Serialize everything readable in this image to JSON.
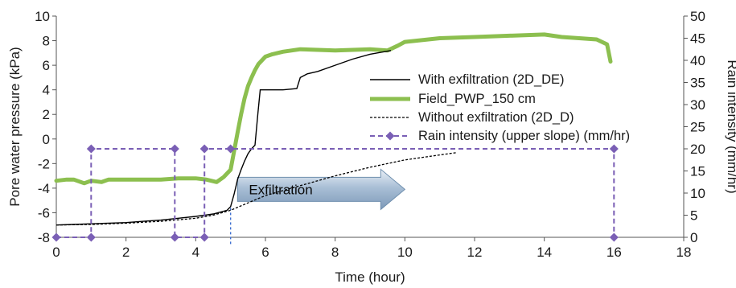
{
  "chart_data": {
    "type": "line",
    "xlabel": "Time (hour)",
    "ylabel": "Pore water pressure (kPa)",
    "y2label": "Rain intensity (mm/hr)",
    "xlim": [
      0,
      18
    ],
    "ylim": [
      -8,
      10
    ],
    "y2lim": [
      0,
      50
    ],
    "x_ticks": [
      0,
      2,
      4,
      6,
      8,
      10,
      12,
      14,
      16,
      18
    ],
    "y_ticks": [
      -8,
      -6,
      -4,
      -2,
      0,
      2,
      4,
      6,
      8,
      10
    ],
    "y2_ticks": [
      0,
      5,
      10,
      15,
      20,
      25,
      30,
      35,
      40,
      45,
      50
    ],
    "grid": false,
    "legend_position": "center-right",
    "colors": {
      "with_exfiltration": "#000000",
      "field": "#8cbf4f",
      "without_exfiltration": "#000000",
      "rain": "#7a5fb5",
      "arrow": "#8aa6c4"
    },
    "series": [
      {
        "name": "With exfiltration (2D_DE)",
        "axis": "left",
        "style": "solid",
        "x": [
          0,
          0.5,
          1,
          1.5,
          2,
          2.5,
          3,
          3.5,
          4,
          4.5,
          4.9,
          5.0,
          5.1,
          5.2,
          5.3,
          5.4,
          5.5,
          5.6,
          5.7,
          5.78,
          5.85,
          6.0,
          6.5,
          6.9,
          7.0,
          7.2,
          7.5,
          8.0,
          8.5,
          9.0,
          9.6
        ],
        "y": [
          -7.0,
          -6.95,
          -6.9,
          -6.85,
          -6.8,
          -6.7,
          -6.6,
          -6.45,
          -6.3,
          -6.1,
          -5.8,
          -5.5,
          -4.5,
          -3.3,
          -2.5,
          -1.8,
          -1.2,
          -0.8,
          -0.5,
          2.0,
          4.0,
          4.0,
          4.0,
          4.1,
          5.0,
          5.3,
          5.5,
          6.0,
          6.5,
          6.9,
          7.2
        ]
      },
      {
        "name": "Field_PWP_150 cm",
        "axis": "left",
        "style": "solid",
        "x": [
          0,
          0.3,
          0.5,
          0.8,
          1.0,
          1.3,
          1.5,
          2.0,
          2.5,
          3.0,
          3.5,
          4.0,
          4.3,
          4.6,
          4.8,
          5.0,
          5.1,
          5.2,
          5.3,
          5.4,
          5.5,
          5.6,
          5.7,
          5.8,
          6.0,
          6.2,
          6.5,
          7.0,
          8.0,
          9.0,
          9.5,
          9.8,
          10.0,
          11.0,
          12.0,
          13.0,
          14.0,
          14.5,
          15.0,
          15.5,
          15.8,
          15.9
        ],
        "y": [
          -3.4,
          -3.3,
          -3.3,
          -3.6,
          -3.4,
          -3.5,
          -3.3,
          -3.3,
          -3.3,
          -3.3,
          -3.2,
          -3.2,
          -3.3,
          -3.5,
          -3.1,
          -2.5,
          -1.0,
          0.5,
          2.0,
          3.3,
          4.3,
          5.0,
          5.6,
          6.1,
          6.7,
          6.9,
          7.1,
          7.3,
          7.2,
          7.3,
          7.2,
          7.6,
          7.9,
          8.2,
          8.3,
          8.4,
          8.5,
          8.3,
          8.2,
          8.1,
          7.7,
          6.3
        ]
      },
      {
        "name": "Without exfiltration (2D_D)",
        "axis": "left",
        "style": "dashed",
        "x": [
          0,
          1,
          2,
          3,
          4,
          4.5,
          5.0,
          5.5,
          6.0,
          7.0,
          8.0,
          9.0,
          10.0,
          11.0,
          11.5
        ],
        "y": [
          -7.0,
          -6.95,
          -6.85,
          -6.7,
          -6.45,
          -6.2,
          -5.8,
          -5.2,
          -4.6,
          -3.8,
          -3.0,
          -2.3,
          -1.7,
          -1.3,
          -1.1
        ]
      },
      {
        "name": "Rain intensity (upper slope) (mm/hr)",
        "axis": "right",
        "style": "dashed-markers",
        "x": [
          0,
          1,
          1,
          3.4,
          3.4,
          4.25,
          4.25,
          5.0,
          16,
          16
        ],
        "y": [
          0,
          0,
          20,
          20,
          0,
          0,
          20,
          20,
          20,
          0
        ]
      }
    ],
    "annotations": [
      {
        "text": "Exfiltration"
      }
    ]
  }
}
